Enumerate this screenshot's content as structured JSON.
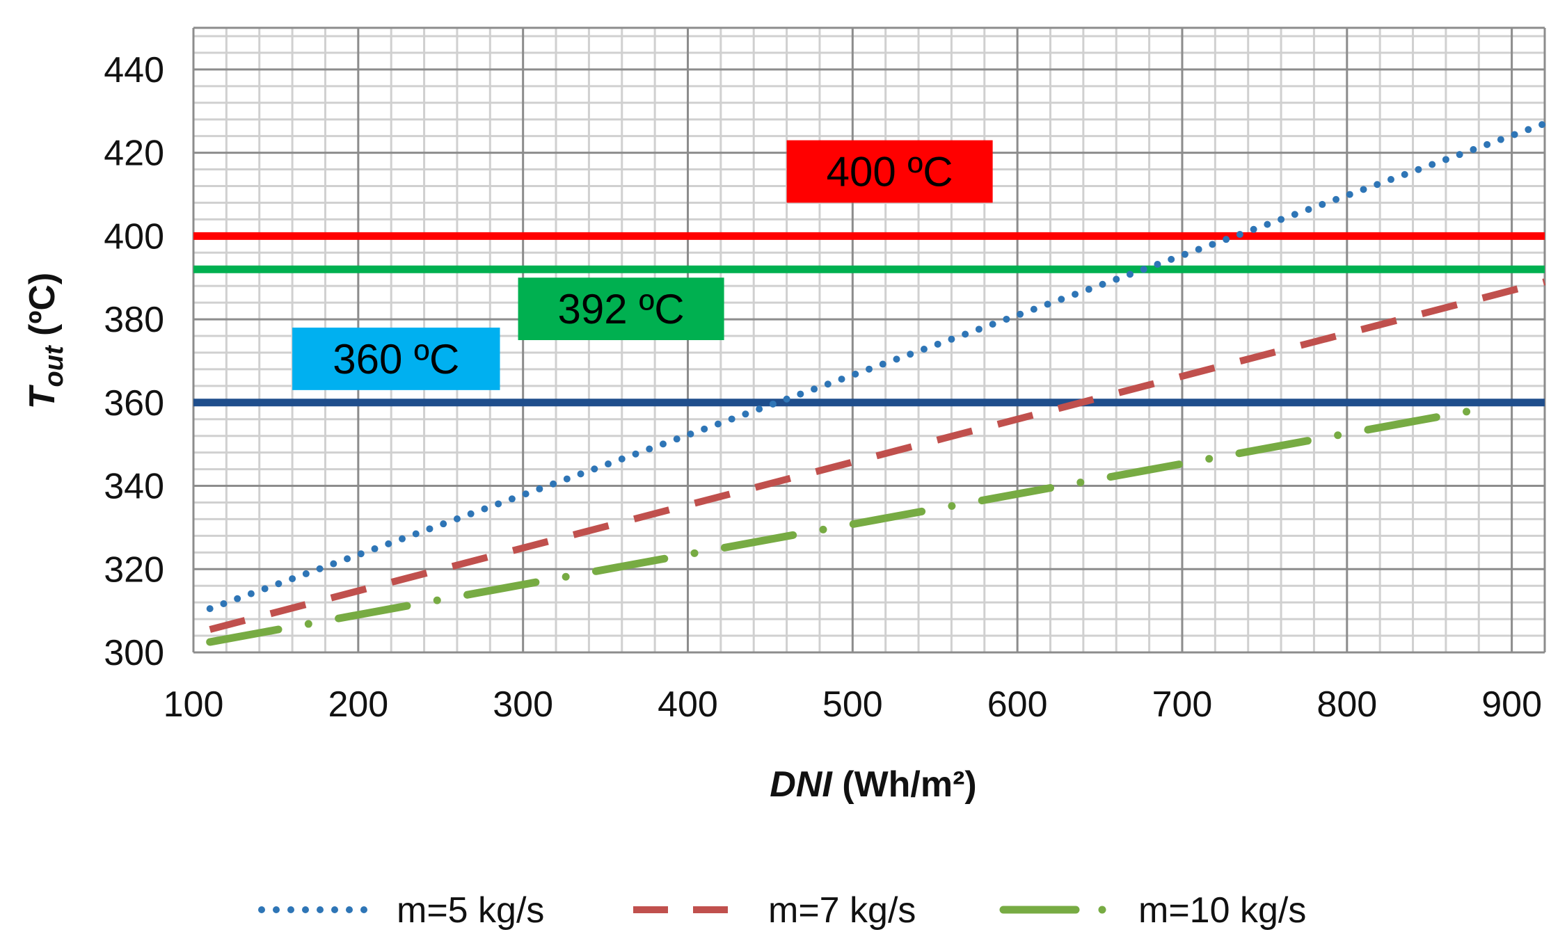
{
  "chart_data": {
    "type": "line",
    "title": "",
    "xlabel": {
      "italic": "DNI",
      "rest": " (Wh/m²)"
    },
    "ylabel": {
      "italic": "T",
      "sub": "out",
      "rest": " (ºC)"
    },
    "xlim": [
      100,
      920
    ],
    "ylim": [
      300,
      450
    ],
    "xticks": [
      100,
      200,
      300,
      400,
      500,
      600,
      700,
      800,
      900
    ],
    "yticks": [
      300,
      320,
      340,
      360,
      380,
      400,
      420,
      440
    ],
    "x_minor_step": 20,
    "y_minor_step": 4,
    "grid": true,
    "x": [
      110,
      920
    ],
    "series": [
      {
        "name": "m=5 kg/s",
        "style": "dotted",
        "color": "#2e75b6",
        "values": [
          310.5,
          427
        ]
      },
      {
        "name": "m=7 kg/s",
        "style": "dashed",
        "color": "#c0504d",
        "values": [
          305.5,
          389
        ]
      },
      {
        "name": "m=10 kg/s",
        "style": "dash-dot",
        "color": "#77ab43",
        "x": [
          110,
          875
        ],
        "values": [
          302.5,
          358
        ]
      }
    ],
    "reference_lines": [
      {
        "value": 400,
        "label": "400 ºC",
        "line_color": "#ff0000",
        "box_color": "#ff0000",
        "label_x": [
          460,
          585
        ],
        "label_y": [
          408,
          423
        ]
      },
      {
        "value": 392,
        "label": "392 ºC",
        "line_color": "#00b050",
        "box_color": "#00b050",
        "label_x": [
          297,
          422
        ],
        "label_y": [
          375,
          390
        ]
      },
      {
        "value": 360,
        "label": "360 ºC",
        "line_color": "#1f4e8c",
        "box_color": "#00b0f0",
        "label_x": [
          160,
          286
        ],
        "label_y": [
          363,
          378
        ]
      }
    ],
    "legend": {
      "position": "bottom",
      "entries": [
        "m=5 kg/s",
        "m=7 kg/s",
        "m=10 kg/s"
      ]
    }
  }
}
